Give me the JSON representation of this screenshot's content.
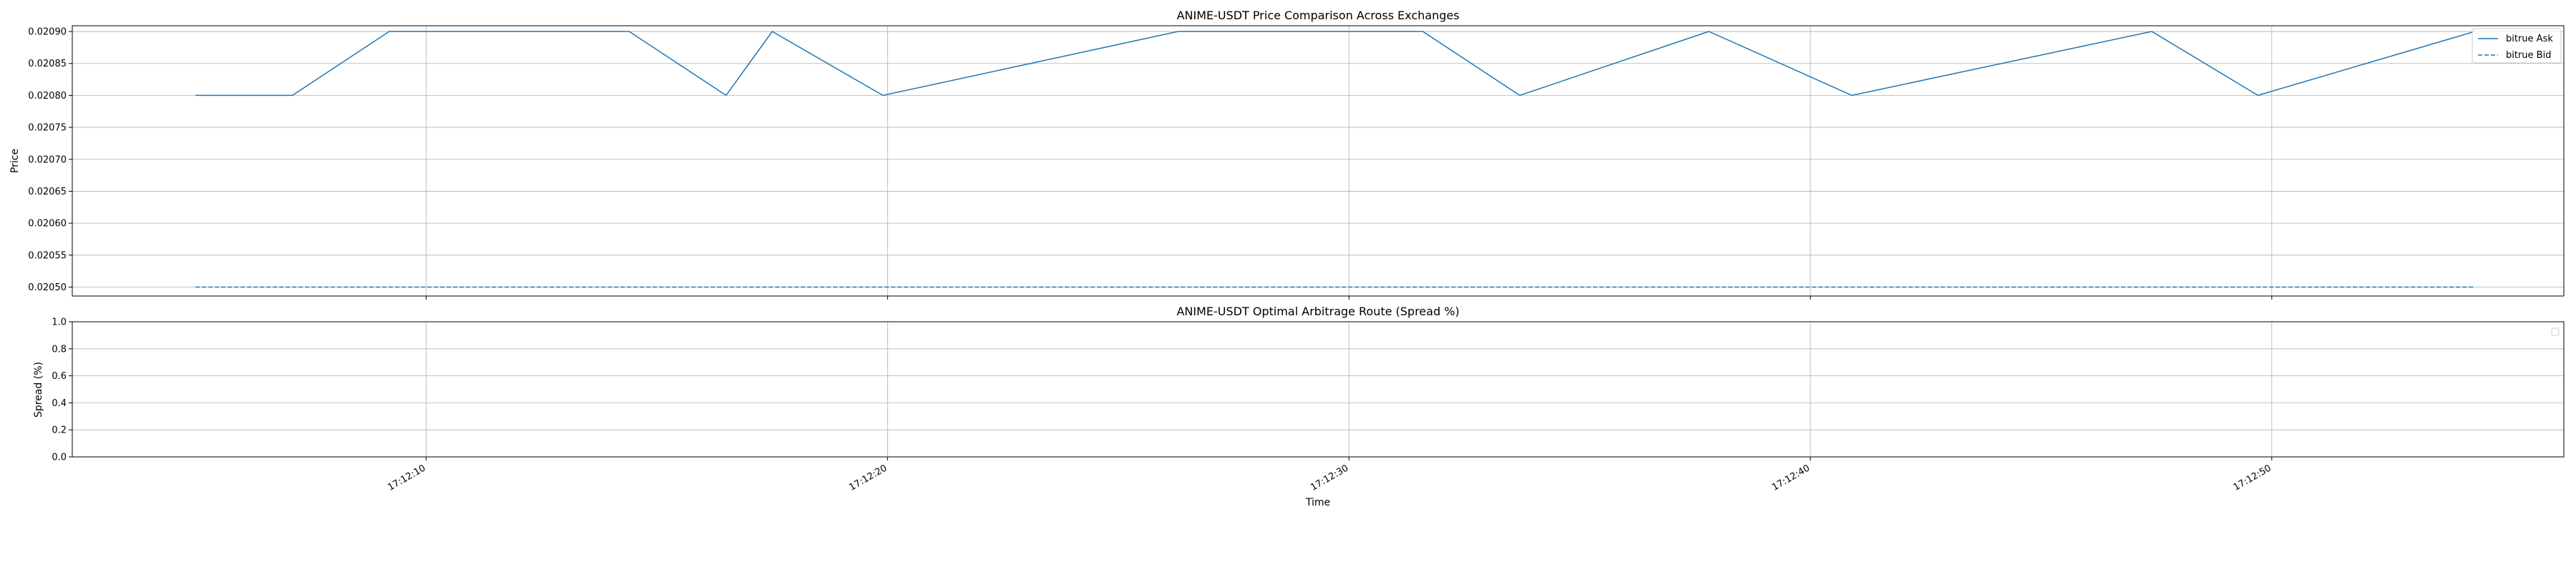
{
  "chart_data": [
    {
      "type": "line",
      "title": "ANIME-USDT Price Comparison Across Exchanges",
      "xlabel": "",
      "ylabel": "Price",
      "ylim": [
        0.020486,
        0.020909
      ],
      "yticks": [
        0.0205,
        0.02055,
        0.0206,
        0.02065,
        0.0207,
        0.02075,
        0.0208,
        0.02085,
        0.0209
      ],
      "ytick_labels": [
        "0.02050",
        "0.02055",
        "0.02060",
        "0.02065",
        "0.02070",
        "0.02075",
        "0.02080",
        "0.02085",
        "0.02090"
      ],
      "grid": true,
      "legend_position": "top-right",
      "series": [
        {
          "name": "bitrue Ask",
          "style": "solid",
          "color": "#1f77b4",
          "x": [
            5.0,
            7.1,
            9.2,
            14.4,
            16.5,
            17.5,
            19.9,
            26.3,
            31.6,
            33.7,
            37.8,
            40.9,
            47.4,
            49.7,
            54.4
          ],
          "y": [
            0.0208,
            0.0208,
            0.0209,
            0.0209,
            0.0208,
            0.0209,
            0.0208,
            0.0209,
            0.0209,
            0.0208,
            0.0209,
            0.0208,
            0.0209,
            0.0208,
            0.0209
          ]
        },
        {
          "name": "bitrue Bid",
          "style": "dashed",
          "color": "#1f77b4",
          "x": [
            5.0,
            54.4
          ],
          "y": [
            0.0205,
            0.0205
          ]
        }
      ]
    },
    {
      "type": "line",
      "title": "ANIME-USDT Optimal Arbitrage Route (Spread %)",
      "xlabel": "Time",
      "ylabel": "Spread (%)",
      "ylim": [
        0,
        1
      ],
      "yticks": [
        0,
        0.2,
        0.4,
        0.6,
        0.8,
        1.0
      ],
      "ytick_labels": [
        "0.0",
        "0.2",
        "0.4",
        "0.6",
        "0.8",
        "1.0"
      ],
      "grid": true,
      "legend_position": "top-right",
      "series": []
    }
  ],
  "x_axis": {
    "unit": "seconds after 17:12:00",
    "xlim": [
      2.33,
      56.33
    ],
    "ticks": [
      10,
      20,
      30,
      40,
      50
    ],
    "tick_labels": [
      "17:12:10",
      "17:12:20",
      "17:12:30",
      "17:12:40",
      "17:12:50"
    ]
  },
  "colors": {
    "series": "#1f77b4",
    "grid": "#b0b0b0",
    "axes": "#000000"
  }
}
